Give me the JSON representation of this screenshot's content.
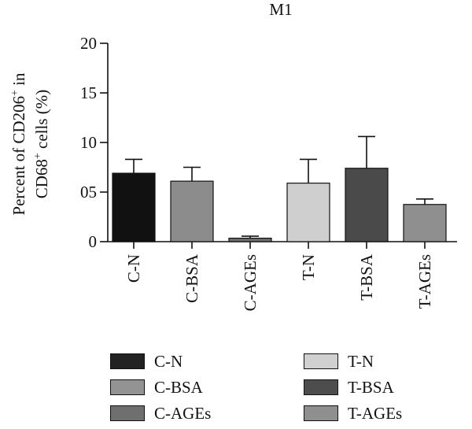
{
  "chart_data": {
    "type": "bar",
    "title": "M1",
    "ylabel_line1_main": "Percent of CD206",
    "ylabel_line1_sup": "+",
    "ylabel_line1_tail": " in",
    "ylabel_line2_main": "CD68",
    "ylabel_line2_sup": "+",
    "ylabel_line2_tail": " cells (%)",
    "ylim": [
      0,
      20
    ],
    "yticks": [
      {
        "value": 0,
        "label": "0"
      },
      {
        "value": 5,
        "label": "05"
      },
      {
        "value": 10,
        "label": "10"
      },
      {
        "value": 15,
        "label": "15"
      },
      {
        "value": 20,
        "label": "20"
      }
    ],
    "categories": [
      "C-N",
      "C-BSA",
      "C-AGEs",
      "T-N",
      "T-BSA",
      "T-AGEs"
    ],
    "values": [
      6.9,
      6.1,
      0.35,
      5.9,
      7.4,
      3.75
    ],
    "errors": [
      1.4,
      1.4,
      0.2,
      2.4,
      3.2,
      0.55
    ],
    "colors": [
      "#111111",
      "#8c8c8c",
      "#6f6f6f",
      "#cfcfcf",
      "#4a4a4a",
      "#8f8f8f"
    ],
    "legend": [
      {
        "label": "C-N",
        "color": "#222222"
      },
      {
        "label": "T-N",
        "color": "#d0d0d0"
      },
      {
        "label": "C-BSA",
        "color": "#939393"
      },
      {
        "label": "T-BSA",
        "color": "#4d4d4d"
      },
      {
        "label": "C-AGEs",
        "color": "#6f6f6f"
      },
      {
        "label": "T-AGEs",
        "color": "#8f8f8f"
      }
    ],
    "legend_placement": "bottom",
    "grid": false
  }
}
